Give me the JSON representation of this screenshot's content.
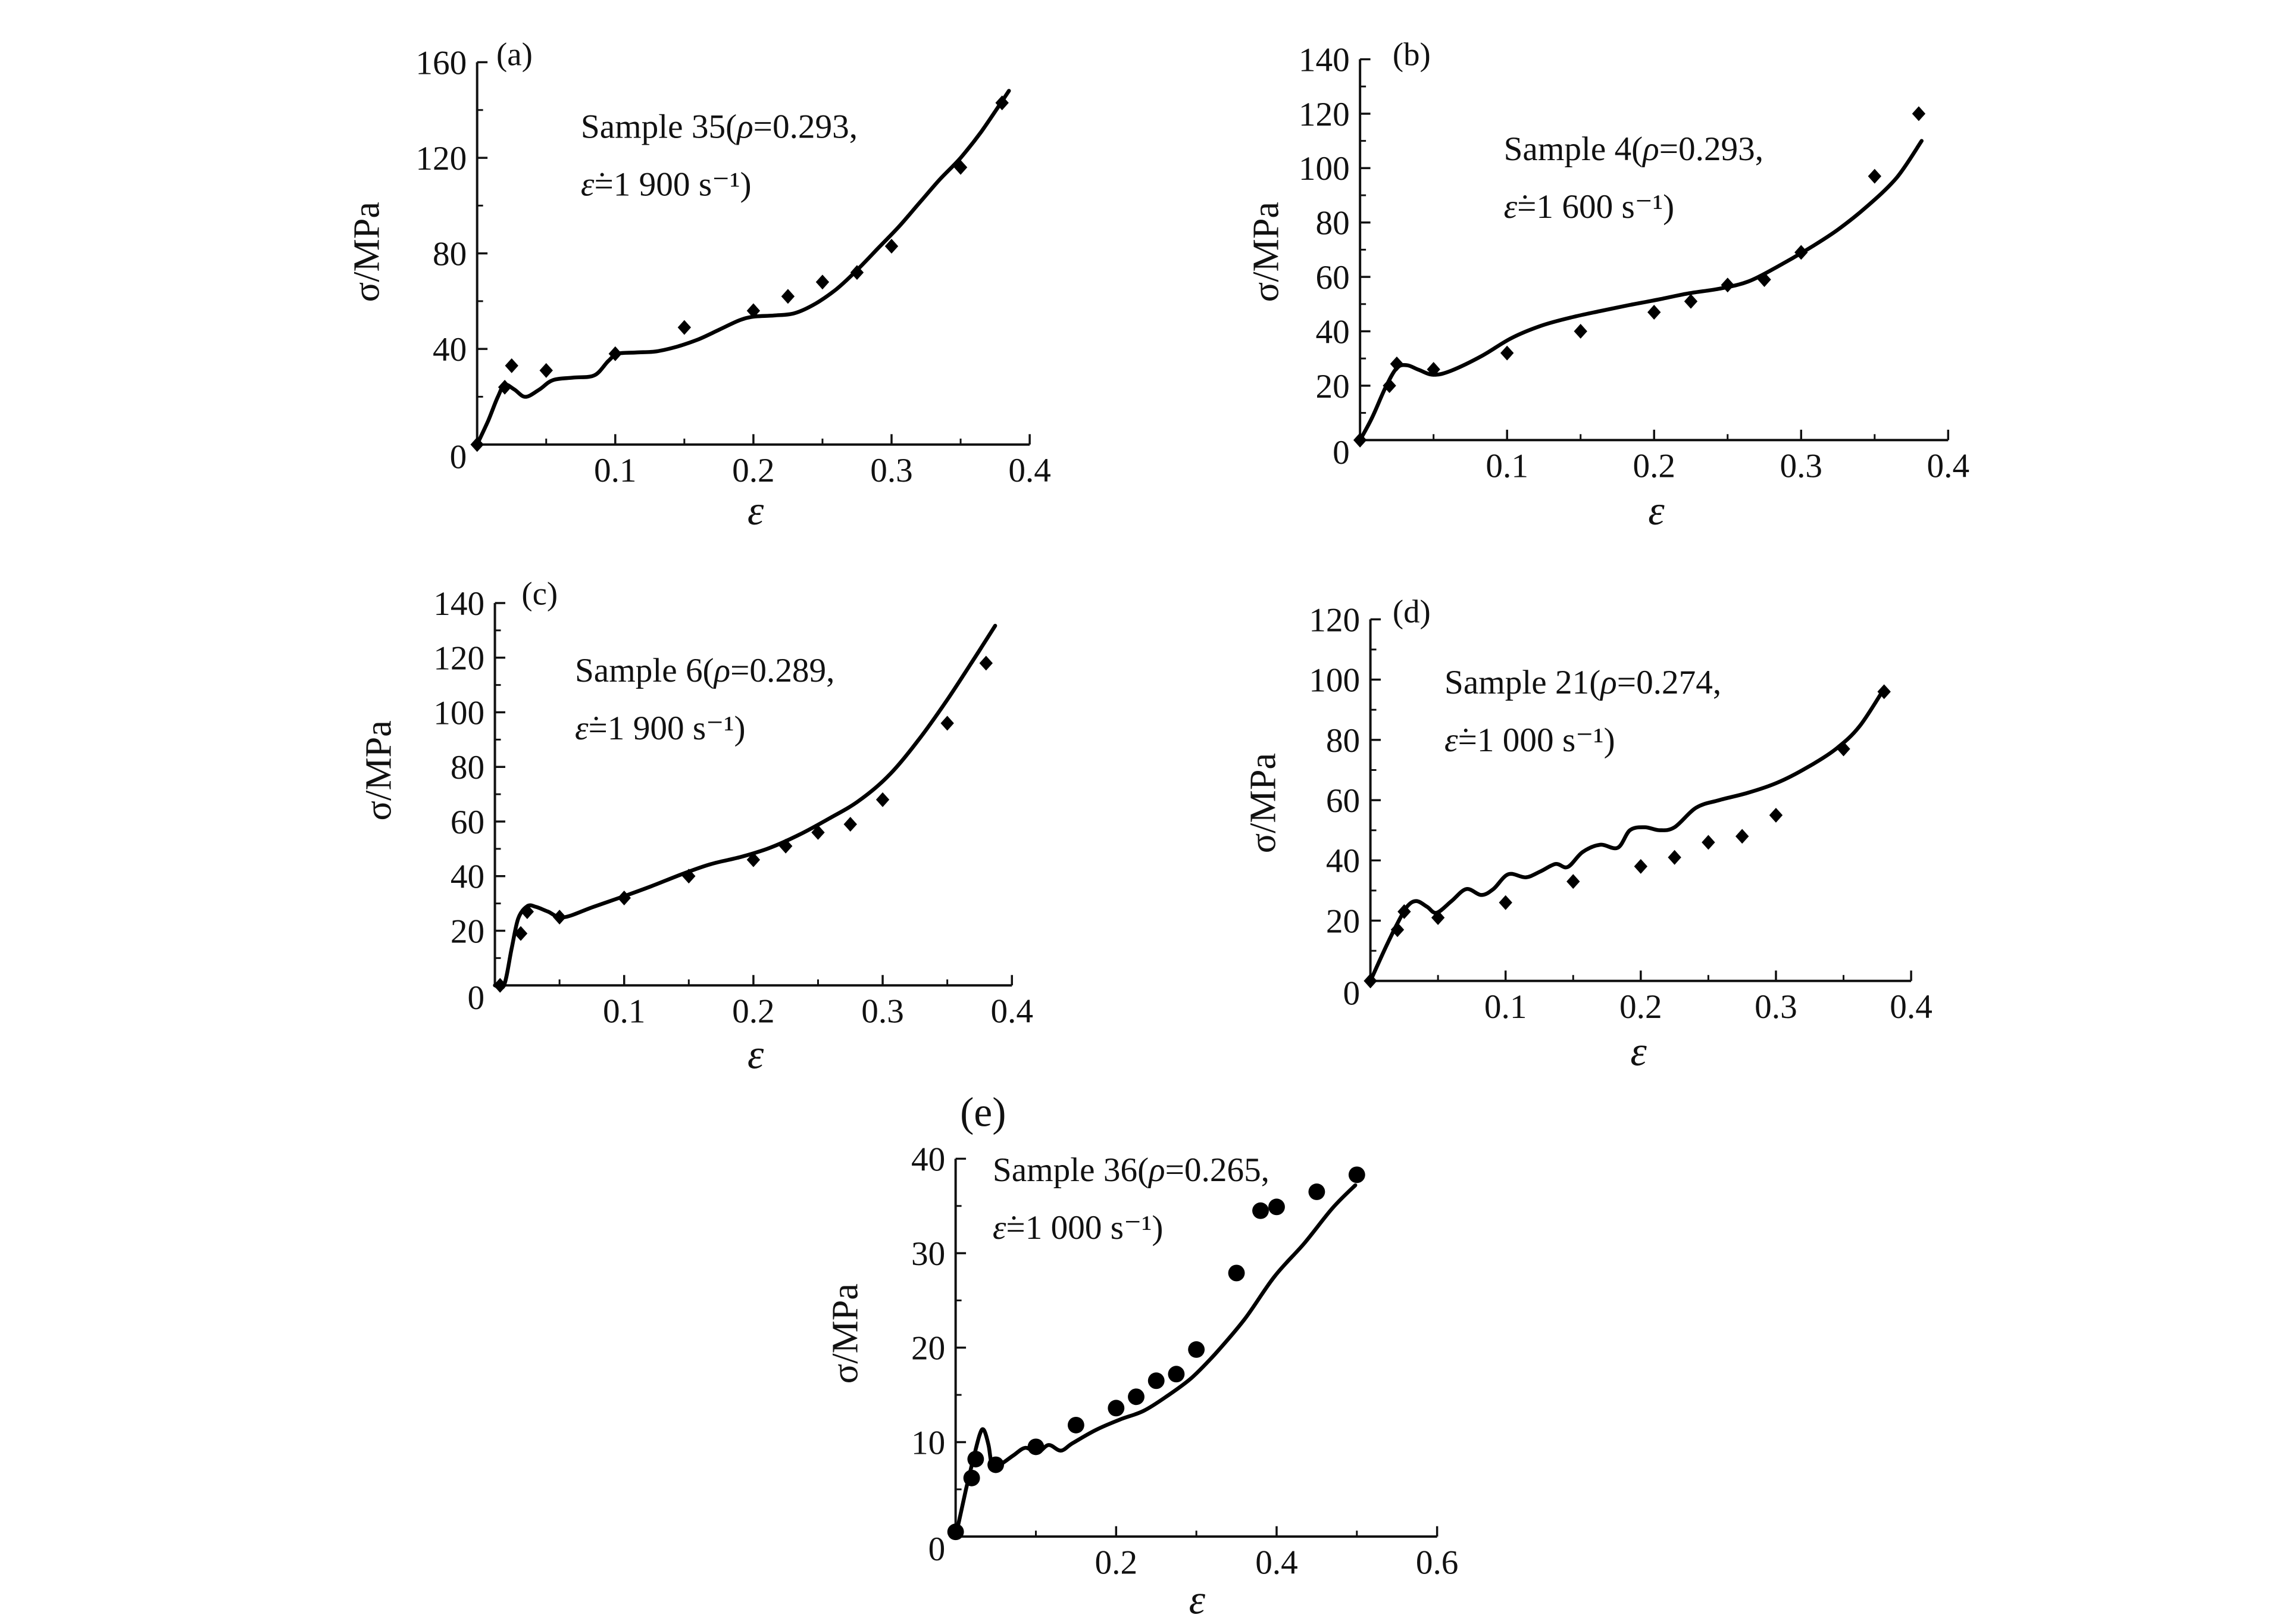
{
  "chart_data": [
    {
      "type": "line",
      "panel": "(a)",
      "annotation": [
        "Sample 35(ρ=0.293,",
        "ε̇=1 900 s⁻¹)"
      ],
      "xlabel": "ε",
      "ylabel": "σ/MPa",
      "xlim": [
        0,
        0.4
      ],
      "ylim": [
        0,
        160
      ],
      "xticks": [
        0.1,
        0.2,
        0.3,
        0.4
      ],
      "yticks": [
        0,
        40,
        80,
        120,
        160
      ],
      "grid": false,
      "legend": "none",
      "series": [
        {
          "style": "line",
          "color": "#000000",
          "x": [
            0,
            0.008,
            0.015,
            0.02,
            0.027,
            0.035,
            0.045,
            0.055,
            0.07,
            0.085,
            0.095,
            0.102,
            0.115,
            0.13,
            0.145,
            0.16,
            0.175,
            0.19,
            0.2,
            0.215,
            0.23,
            0.245,
            0.26,
            0.275,
            0.29,
            0.305,
            0.32,
            0.335,
            0.35,
            0.365,
            0.385
          ],
          "y": [
            0,
            10,
            20,
            25,
            23,
            20,
            23,
            27,
            28,
            29,
            35,
            38,
            38.5,
            39,
            41,
            44,
            48,
            52,
            53.5,
            54,
            55,
            59,
            65,
            73,
            82,
            91,
            101,
            111,
            120,
            131,
            148
          ]
        },
        {
          "style": "scatter",
          "marker": "diamond",
          "color": "#000000",
          "x": [
            0,
            0.02,
            0.025,
            0.05,
            0.1,
            0.15,
            0.2,
            0.225,
            0.25,
            0.275,
            0.3,
            0.35,
            0.38
          ],
          "y": [
            0,
            24,
            33,
            31,
            38,
            49,
            56,
            62,
            68,
            72,
            83,
            116,
            143
          ]
        }
      ]
    },
    {
      "type": "line",
      "panel": "(b)",
      "annotation": [
        "Sample 4(ρ=0.293,",
        "ε̇=1 600 s⁻¹)"
      ],
      "xlabel": "ε",
      "ylabel": "σ/MPa",
      "xlim": [
        0,
        0.4
      ],
      "ylim": [
        0,
        140
      ],
      "xticks": [
        0.1,
        0.2,
        0.3,
        0.4
      ],
      "yticks": [
        0,
        20,
        40,
        60,
        80,
        100,
        120,
        140
      ],
      "grid": false,
      "legend": "none",
      "series": [
        {
          "style": "line",
          "color": "#000000",
          "x": [
            0,
            0.008,
            0.017,
            0.025,
            0.032,
            0.04,
            0.05,
            0.062,
            0.083,
            0.103,
            0.123,
            0.143,
            0.163,
            0.183,
            0.204,
            0.224,
            0.244,
            0.264,
            0.284,
            0.304,
            0.324,
            0.344,
            0.365,
            0.382
          ],
          "y": [
            0,
            8,
            19,
            26.5,
            27.5,
            25.8,
            24,
            25.5,
            31,
            37.5,
            42,
            45,
            47.4,
            49.6,
            51.8,
            54,
            55.6,
            58.3,
            63.8,
            70,
            77,
            85.5,
            96.5,
            110
          ]
        },
        {
          "style": "scatter",
          "marker": "diamond",
          "color": "#000000",
          "x": [
            0,
            0.02,
            0.025,
            0.05,
            0.1,
            0.15,
            0.2,
            0.225,
            0.25,
            0.275,
            0.3,
            0.35,
            0.38
          ],
          "y": [
            0,
            20,
            28,
            26,
            32,
            40,
            47,
            51,
            57,
            59,
            69,
            97,
            120
          ]
        }
      ]
    },
    {
      "type": "line",
      "panel": "(c)",
      "annotation": [
        "Sample 6(ρ=0.289,",
        "ε̇=1 900 s⁻¹)"
      ],
      "xlabel": "ε",
      "ylabel": "σ/MPa",
      "xlim": [
        0,
        0.4
      ],
      "ylim": [
        0,
        140
      ],
      "xticks": [
        0.1,
        0.2,
        0.3,
        0.4
      ],
      "yticks": [
        0,
        20,
        40,
        60,
        80,
        100,
        120,
        140
      ],
      "grid": false,
      "legend": "none",
      "series": [
        {
          "style": "line",
          "color": "#000000",
          "x": [
            0,
            0.007,
            0.013,
            0.018,
            0.025,
            0.032,
            0.041,
            0.053,
            0.076,
            0.099,
            0.121,
            0.144,
            0.167,
            0.19,
            0.213,
            0.236,
            0.259,
            0.282,
            0.305,
            0.327,
            0.35,
            0.374,
            0.387
          ],
          "y": [
            0,
            0,
            13.5,
            24.4,
            29,
            28.7,
            27,
            24.9,
            28.7,
            32.5,
            36.3,
            40.6,
            44.4,
            47,
            50.4,
            55.3,
            61.2,
            67.7,
            77,
            89.4,
            104.6,
            122,
            131.7
          ]
        },
        {
          "style": "scatter",
          "marker": "diamond",
          "color": "#000000",
          "x": [
            0.004,
            0.02,
            0.025,
            0.05,
            0.1,
            0.15,
            0.2,
            0.225,
            0.25,
            0.275,
            0.3,
            0.35,
            0.38
          ],
          "y": [
            0,
            19,
            27,
            25,
            32,
            40,
            46,
            51,
            56,
            59,
            68,
            96,
            118
          ]
        }
      ]
    },
    {
      "type": "line",
      "panel": "(d)",
      "annotation": [
        "Sample 21(ρ=0.274,",
        "ε̇=1 000 s⁻¹)"
      ],
      "xlabel": "ε",
      "ylabel": "σ/MPa",
      "xlim": [
        0,
        0.4
      ],
      "ylim": [
        0,
        120
      ],
      "xticks": [
        0.1,
        0.2,
        0.3,
        0.4
      ],
      "yticks": [
        0,
        20,
        40,
        60,
        80,
        100,
        120
      ],
      "grid": false,
      "legend": "none",
      "series": [
        {
          "style": "line",
          "color": "#000000",
          "x": [
            0,
            0.011,
            0.019,
            0.027,
            0.034,
            0.042,
            0.049,
            0.06,
            0.071,
            0.082,
            0.091,
            0.102,
            0.115,
            0.126,
            0.137,
            0.146,
            0.157,
            0.17,
            0.183,
            0.192,
            0.203,
            0.214,
            0.225,
            0.241,
            0.258,
            0.279,
            0.301,
            0.323,
            0.345,
            0.362,
            0.38
          ],
          "y": [
            0,
            10.8,
            18.2,
            24.6,
            26.5,
            24.6,
            22.6,
            26.5,
            30.5,
            28.5,
            30.5,
            35.4,
            34.4,
            36.4,
            38.8,
            37.8,
            42.8,
            45.2,
            44.2,
            50,
            51,
            50,
            51,
            57.5,
            60,
            62.4,
            65.8,
            70.8,
            77.2,
            84.6,
            97
          ]
        },
        {
          "style": "scatter",
          "marker": "diamond",
          "color": "#000000",
          "x": [
            0,
            0.02,
            0.025,
            0.05,
            0.1,
            0.15,
            0.2,
            0.225,
            0.25,
            0.275,
            0.3,
            0.35,
            0.38
          ],
          "y": [
            0,
            17,
            23,
            21,
            26,
            33,
            38,
            41,
            46,
            48,
            55,
            77,
            96
          ]
        }
      ]
    },
    {
      "type": "line",
      "panel": "(e)",
      "annotation": [
        "Sample 36(ρ=0.265,",
        "ε̇=1 000 s⁻¹)"
      ],
      "xlabel": "ε",
      "ylabel": "σ/MPa",
      "xlim": [
        0,
        0.6
      ],
      "ylim": [
        0,
        40
      ],
      "xticks": [
        0.2,
        0.4,
        0.6
      ],
      "yticks": [
        0,
        10,
        20,
        30,
        40
      ],
      "grid": false,
      "legend": "none",
      "series": [
        {
          "style": "line",
          "color": "#000000",
          "x": [
            0,
            0.013,
            0.022,
            0.03,
            0.035,
            0.041,
            0.046,
            0.057,
            0.072,
            0.087,
            0.102,
            0.116,
            0.131,
            0.146,
            0.175,
            0.205,
            0.234,
            0.264,
            0.294,
            0.323,
            0.36,
            0.397,
            0.434,
            0.47,
            0.498
          ],
          "y": [
            0,
            5,
            8.2,
            10.8,
            11.3,
            9.7,
            7.4,
            7.7,
            8.6,
            9.4,
            8.9,
            9.7,
            9.1,
            9.9,
            11.3,
            12.4,
            13.3,
            14.9,
            16.8,
            19.3,
            23,
            27.5,
            31,
            34.8,
            37.2
          ]
        },
        {
          "style": "scatter",
          "marker": "circle",
          "color": "#000000",
          "x": [
            0,
            0.02,
            0.025,
            0.05,
            0.1,
            0.15,
            0.2,
            0.225,
            0.25,
            0.275,
            0.3,
            0.35,
            0.38,
            0.4,
            0.45,
            0.5
          ],
          "y": [
            0.5,
            6.2,
            8.2,
            7.6,
            9.5,
            11.8,
            13.6,
            14.8,
            16.5,
            17.2,
            19.8,
            27.9,
            34.5,
            34.9,
            36.5,
            38.3
          ]
        }
      ]
    }
  ]
}
